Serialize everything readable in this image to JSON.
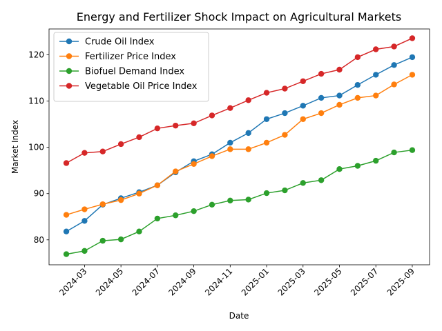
{
  "chart_data": {
    "type": "line",
    "title": "Energy and Fertilizer Shock Impact on Agricultural Markets",
    "xlabel": "Date",
    "ylabel": "Market Index",
    "x": [
      "2024-02",
      "2024-03",
      "2024-04",
      "2024-05",
      "2024-06",
      "2024-07",
      "2024-08",
      "2024-09",
      "2024-10",
      "2024-11",
      "2024-12",
      "2025-01",
      "2025-02",
      "2025-03",
      "2025-04",
      "2025-05",
      "2025-06",
      "2025-07",
      "2025-08",
      "2025-09"
    ],
    "xticks": [
      "2024-03",
      "2024-05",
      "2024-07",
      "2024-09",
      "2024-11",
      "2025-01",
      "2025-03",
      "2025-05",
      "2025-07",
      "2025-09"
    ],
    "yticks": [
      80,
      90,
      100,
      110,
      120
    ],
    "ylim": [
      74.6,
      125.6
    ],
    "grid": false,
    "legend_position": "top-left",
    "series": [
      {
        "name": "Crude Oil Index",
        "color": "#1f77b4",
        "values": [
          81.8,
          84.1,
          87.6,
          89.0,
          90.3,
          91.8,
          94.6,
          97.0,
          98.5,
          101.0,
          103.1,
          106.1,
          107.4,
          109.0,
          110.7,
          111.2,
          113.5,
          115.7,
          117.8,
          119.5
        ]
      },
      {
        "name": "Fertilizer Price Index",
        "color": "#ff7f0e",
        "values": [
          85.4,
          86.6,
          87.7,
          88.6,
          90.0,
          91.8,
          94.8,
          96.4,
          98.1,
          99.6,
          99.6,
          101.0,
          102.7,
          106.1,
          107.4,
          109.2,
          110.7,
          111.2,
          113.6,
          115.7
        ]
      },
      {
        "name": "Biofuel Demand Index",
        "color": "#2ca02c",
        "values": [
          76.9,
          77.6,
          79.8,
          80.1,
          81.8,
          84.6,
          85.3,
          86.2,
          87.6,
          88.5,
          88.7,
          90.1,
          90.7,
          92.3,
          92.9,
          95.3,
          96.0,
          97.1,
          98.9,
          99.4
        ]
      },
      {
        "name": "Vegetable Oil Price Index",
        "color": "#d62728",
        "values": [
          96.6,
          98.8,
          99.1,
          100.7,
          102.2,
          104.1,
          104.7,
          105.2,
          106.9,
          108.5,
          110.2,
          111.8,
          112.7,
          114.3,
          115.9,
          116.8,
          119.5,
          121.2,
          121.8,
          123.6
        ]
      }
    ]
  }
}
